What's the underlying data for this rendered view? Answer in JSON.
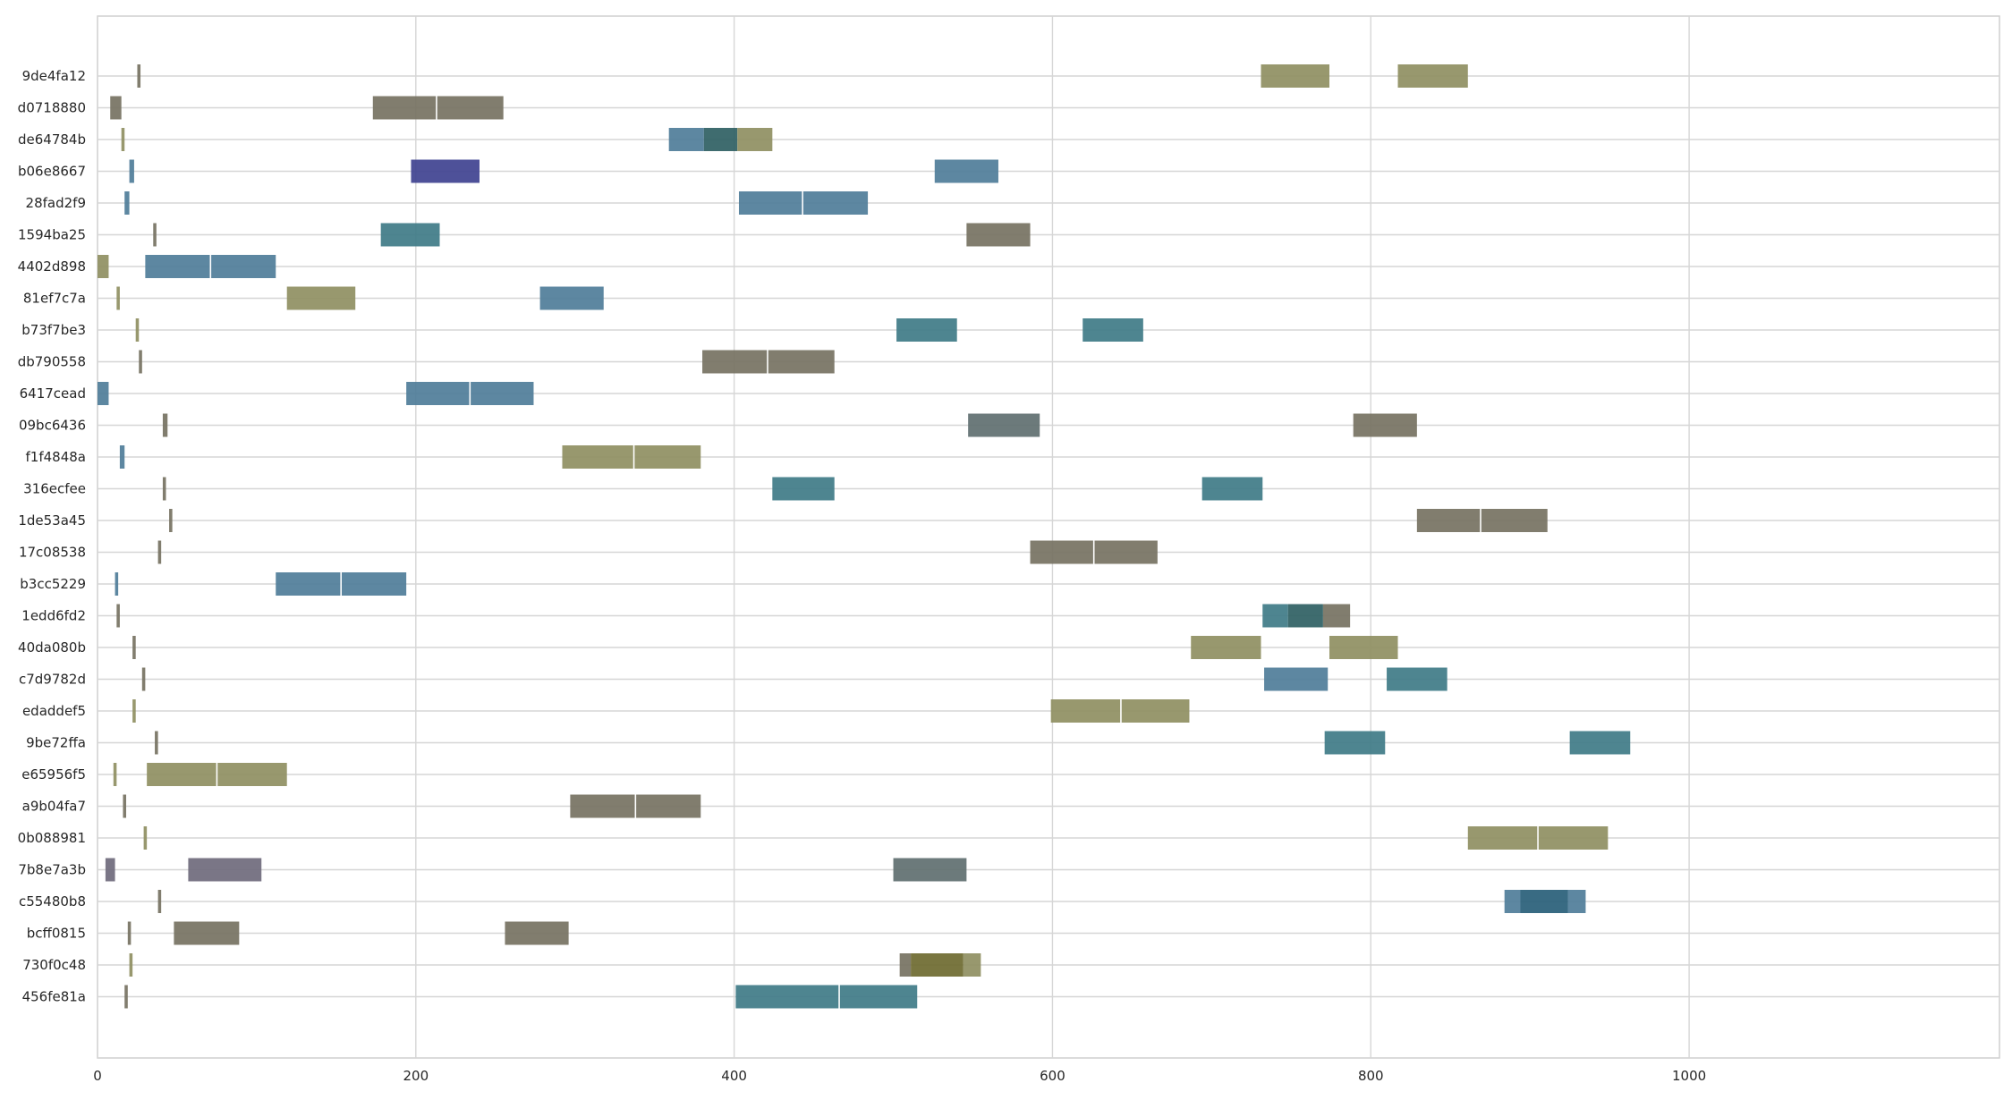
{
  "chart_data": {
    "type": "gantt",
    "title": "",
    "xlabel": "",
    "ylabel": "",
    "xlim": [
      0,
      1195
    ],
    "xticks": [
      0,
      200,
      400,
      600,
      800,
      1000
    ],
    "grid": true,
    "colors": {
      "blue": "#4f7d99",
      "teal": "#3f7b87",
      "olive": "#8f8f62",
      "gray": "#767262",
      "slate": "#5f6f70",
      "indigo": "#3f4290",
      "purple": "#6f6a7c",
      "darkteal": "#2f5f63",
      "darkblue": "#285e78",
      "darkolive": "#6e6a30"
    },
    "rows": [
      {
        "label": "9de4fa12",
        "segments": [
          {
            "start": 25,
            "end": 27,
            "color": "gray"
          },
          {
            "start": 731,
            "end": 774,
            "color": "olive"
          },
          {
            "start": 817,
            "end": 861,
            "color": "olive"
          }
        ]
      },
      {
        "label": "d0718880",
        "segments": [
          {
            "start": 8,
            "end": 15,
            "color": "gray"
          },
          {
            "start": 173,
            "end": 255,
            "color": "gray",
            "split": 213
          }
        ]
      },
      {
        "label": "de64784b",
        "segments": [
          {
            "start": 15,
            "end": 17,
            "color": "olive"
          },
          {
            "start": 359,
            "end": 381,
            "color": "blue"
          },
          {
            "start": 381,
            "end": 402,
            "color": "darkteal"
          },
          {
            "start": 402,
            "end": 424,
            "color": "olive"
          }
        ]
      },
      {
        "label": "b06e8667",
        "segments": [
          {
            "start": 20,
            "end": 23,
            "color": "blue"
          },
          {
            "start": 197,
            "end": 240,
            "color": "indigo"
          },
          {
            "start": 526,
            "end": 566,
            "color": "blue"
          }
        ]
      },
      {
        "label": "28fad2f9",
        "segments": [
          {
            "start": 17,
            "end": 20,
            "color": "blue"
          },
          {
            "start": 403,
            "end": 484,
            "color": "blue",
            "split": 443
          }
        ]
      },
      {
        "label": "1594ba25",
        "segments": [
          {
            "start": 35,
            "end": 37,
            "color": "gray"
          },
          {
            "start": 178,
            "end": 215,
            "color": "teal"
          },
          {
            "start": 546,
            "end": 586,
            "color": "gray"
          }
        ]
      },
      {
        "label": "4402d898",
        "segments": [
          {
            "start": 0,
            "end": 7,
            "color": "olive"
          },
          {
            "start": 30,
            "end": 112,
            "color": "blue",
            "split": 71
          }
        ]
      },
      {
        "label": "81ef7c7a",
        "segments": [
          {
            "start": 12,
            "end": 14,
            "color": "olive"
          },
          {
            "start": 119,
            "end": 162,
            "color": "olive"
          },
          {
            "start": 278,
            "end": 318,
            "color": "blue"
          }
        ]
      },
      {
        "label": "b73f7be3",
        "segments": [
          {
            "start": 24,
            "end": 26,
            "color": "olive"
          },
          {
            "start": 502,
            "end": 540,
            "color": "teal"
          },
          {
            "start": 619,
            "end": 657,
            "color": "teal"
          }
        ]
      },
      {
        "label": "db790558",
        "segments": [
          {
            "start": 26,
            "end": 28,
            "color": "gray"
          },
          {
            "start": 380,
            "end": 463,
            "color": "gray",
            "split": 421
          }
        ]
      },
      {
        "label": "6417cead",
        "segments": [
          {
            "start": 0,
            "end": 7,
            "color": "blue"
          },
          {
            "start": 194,
            "end": 274,
            "color": "blue",
            "split": 234
          }
        ]
      },
      {
        "label": "09bc6436",
        "segments": [
          {
            "start": 41,
            "end": 44,
            "color": "gray"
          },
          {
            "start": 547,
            "end": 592,
            "color": "slate"
          },
          {
            "start": 789,
            "end": 829,
            "color": "gray"
          }
        ]
      },
      {
        "label": "f1f4848a",
        "segments": [
          {
            "start": 14,
            "end": 17,
            "color": "blue"
          },
          {
            "start": 292,
            "end": 379,
            "color": "olive",
            "split": 337
          }
        ]
      },
      {
        "label": "316ecfee",
        "segments": [
          {
            "start": 41,
            "end": 43,
            "color": "gray"
          },
          {
            "start": 424,
            "end": 463,
            "color": "teal"
          },
          {
            "start": 694,
            "end": 732,
            "color": "teal"
          }
        ]
      },
      {
        "label": "1de53a45",
        "segments": [
          {
            "start": 45,
            "end": 47,
            "color": "gray"
          },
          {
            "start": 829,
            "end": 911,
            "color": "gray",
            "split": 869
          }
        ]
      },
      {
        "label": "17c08538",
        "segments": [
          {
            "start": 38,
            "end": 40,
            "color": "gray"
          },
          {
            "start": 586,
            "end": 666,
            "color": "gray",
            "split": 626
          }
        ]
      },
      {
        "label": "b3cc5229",
        "segments": [
          {
            "start": 11,
            "end": 13,
            "color": "blue"
          },
          {
            "start": 112,
            "end": 194,
            "color": "blue",
            "split": 153
          }
        ]
      },
      {
        "label": "1edd6fd2",
        "segments": [
          {
            "start": 12,
            "end": 14,
            "color": "gray"
          },
          {
            "start": 732,
            "end": 748,
            "color": "teal"
          },
          {
            "start": 748,
            "end": 770,
            "color": "darkteal"
          },
          {
            "start": 770,
            "end": 787,
            "color": "gray"
          }
        ]
      },
      {
        "label": "40da080b",
        "segments": [
          {
            "start": 22,
            "end": 24,
            "color": "gray"
          },
          {
            "start": 687,
            "end": 731,
            "color": "olive"
          },
          {
            "start": 774,
            "end": 817,
            "color": "olive"
          }
        ]
      },
      {
        "label": "c7d9782d",
        "segments": [
          {
            "start": 28,
            "end": 30,
            "color": "gray"
          },
          {
            "start": 733,
            "end": 773,
            "color": "blue"
          },
          {
            "start": 810,
            "end": 848,
            "color": "teal"
          }
        ]
      },
      {
        "label": "edaddef5",
        "segments": [
          {
            "start": 22,
            "end": 24,
            "color": "olive"
          },
          {
            "start": 599,
            "end": 686,
            "color": "olive",
            "split": 643
          }
        ]
      },
      {
        "label": "9be72ffa",
        "segments": [
          {
            "start": 36,
            "end": 38,
            "color": "gray"
          },
          {
            "start": 771,
            "end": 809,
            "color": "teal"
          },
          {
            "start": 925,
            "end": 963,
            "color": "teal"
          }
        ]
      },
      {
        "label": "e65956f5",
        "segments": [
          {
            "start": 10,
            "end": 12,
            "color": "olive"
          },
          {
            "start": 31,
            "end": 119,
            "color": "olive",
            "split": 75
          }
        ]
      },
      {
        "label": "a9b04fa7",
        "segments": [
          {
            "start": 16,
            "end": 18,
            "color": "gray"
          },
          {
            "start": 297,
            "end": 379,
            "color": "gray",
            "split": 338
          }
        ]
      },
      {
        "label": "0b088981",
        "segments": [
          {
            "start": 29,
            "end": 31,
            "color": "olive"
          },
          {
            "start": 861,
            "end": 949,
            "color": "olive",
            "split": 905
          }
        ]
      },
      {
        "label": "7b8e7a3b",
        "segments": [
          {
            "start": 5,
            "end": 11,
            "color": "purple"
          },
          {
            "start": 57,
            "end": 103,
            "color": "purple"
          },
          {
            "start": 500,
            "end": 546,
            "color": "slate"
          }
        ]
      },
      {
        "label": "c55480b8",
        "segments": [
          {
            "start": 38,
            "end": 40,
            "color": "gray"
          },
          {
            "start": 884,
            "end": 894,
            "color": "blue"
          },
          {
            "start": 894,
            "end": 924,
            "color": "darkblue"
          },
          {
            "start": 924,
            "end": 935,
            "color": "blue"
          }
        ]
      },
      {
        "label": "bcff0815",
        "segments": [
          {
            "start": 19,
            "end": 21,
            "color": "gray"
          },
          {
            "start": 48,
            "end": 89,
            "color": "gray"
          },
          {
            "start": 256,
            "end": 296,
            "color": "gray"
          }
        ]
      },
      {
        "label": "730f0c48",
        "segments": [
          {
            "start": 20,
            "end": 22,
            "color": "olive"
          },
          {
            "start": 504,
            "end": 511,
            "color": "gray"
          },
          {
            "start": 511,
            "end": 544,
            "color": "darkolive"
          },
          {
            "start": 544,
            "end": 555,
            "color": "olive"
          }
        ]
      },
      {
        "label": "456fe81a",
        "segments": [
          {
            "start": 17,
            "end": 19,
            "color": "gray"
          },
          {
            "start": 401,
            "end": 515,
            "color": "teal",
            "split": 466
          }
        ]
      }
    ]
  }
}
